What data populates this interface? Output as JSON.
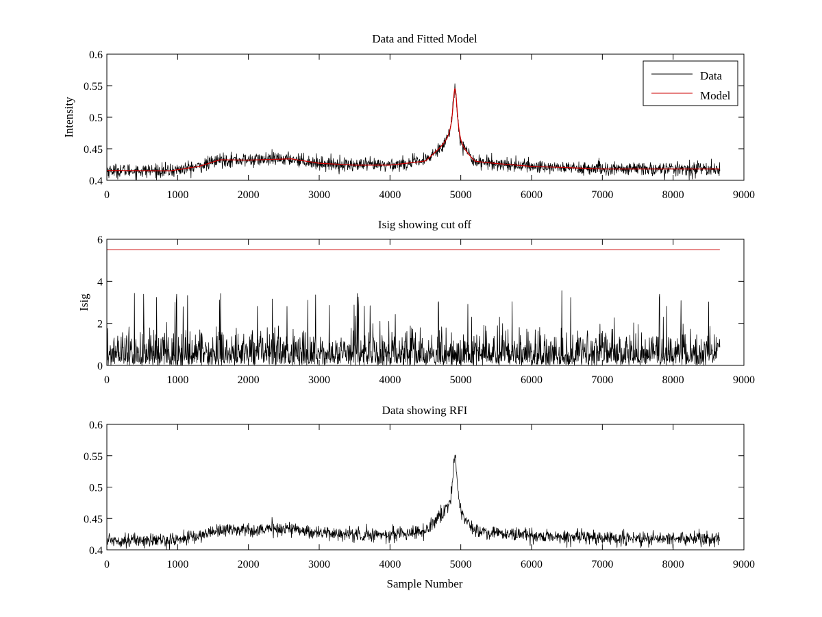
{
  "colors": {
    "data": "#000000",
    "model": "#cc0000",
    "cutoff": "#cc0000",
    "axes": "#000000",
    "background": "#ffffff"
  },
  "chart_data": [
    {
      "type": "line",
      "title": "Data and Fitted Model",
      "xlabel": "",
      "ylabel": "Intensity",
      "xlim": [
        0,
        9000
      ],
      "ylim": [
        0.4,
        0.6
      ],
      "xticks": [
        0,
        1000,
        2000,
        3000,
        4000,
        5000,
        6000,
        7000,
        8000,
        9000
      ],
      "yticks": [
        0.4,
        0.45,
        0.5,
        0.55,
        0.6
      ],
      "ytick_labels": [
        "0.4",
        "0.45",
        "0.5",
        "0.55",
        "0.6"
      ],
      "grid": false,
      "legend": {
        "position": "top-right",
        "entries": [
          "Data",
          "Model"
        ]
      },
      "x_max_sample": 8660,
      "noise_amplitude": 0.006,
      "series": [
        {
          "name": "Data",
          "kind": "noisy",
          "color": "#000000",
          "baseline": [
            [
              0,
              0.4155
            ],
            [
              900,
              0.415
            ],
            [
              1300,
              0.422
            ],
            [
              1600,
              0.4325
            ],
            [
              2000,
              0.432
            ],
            [
              2600,
              0.434
            ],
            [
              3000,
              0.427
            ],
            [
              3500,
              0.424
            ],
            [
              4000,
              0.424
            ],
            [
              4500,
              0.43
            ],
            [
              4900,
              0.468
            ],
            [
              5000,
              0.45
            ],
            [
              5200,
              0.429
            ],
            [
              6000,
              0.422
            ],
            [
              7000,
              0.418
            ],
            [
              8660,
              0.418
            ]
          ],
          "peak": {
            "center": 4920,
            "height": 0.081,
            "width": 38
          }
        },
        {
          "name": "Model",
          "kind": "smooth",
          "color": "#cc0000",
          "baseline": [
            [
              0,
              0.4155
            ],
            [
              900,
              0.415
            ],
            [
              1300,
              0.422
            ],
            [
              1600,
              0.4325
            ],
            [
              2000,
              0.432
            ],
            [
              2600,
              0.434
            ],
            [
              3000,
              0.427
            ],
            [
              3500,
              0.424
            ],
            [
              4000,
              0.424
            ],
            [
              4500,
              0.43
            ],
            [
              4900,
              0.468
            ],
            [
              5000,
              0.45
            ],
            [
              5200,
              0.429
            ],
            [
              6000,
              0.422
            ],
            [
              7000,
              0.418
            ],
            [
              8660,
              0.418
            ]
          ],
          "peak": {
            "center": 4920,
            "height": 0.081,
            "width": 38
          }
        }
      ]
    },
    {
      "type": "line",
      "title": "Isig showing cut off",
      "xlabel": "",
      "ylabel": "Isig",
      "xlim": [
        0,
        9000
      ],
      "ylim": [
        0,
        6
      ],
      "xticks": [
        0,
        1000,
        2000,
        3000,
        4000,
        5000,
        6000,
        7000,
        8000,
        9000
      ],
      "yticks": [
        0,
        2,
        4,
        6
      ],
      "ytick_labels": [
        "0",
        "2",
        "4",
        "6"
      ],
      "grid": false,
      "x_max_sample": 8660,
      "series": [
        {
          "kind": "abs-noise",
          "color": "#000000",
          "scale": 0.75,
          "max": 3.7
        },
        {
          "kind": "cutoff",
          "color": "#cc0000",
          "value": 5.5
        }
      ]
    },
    {
      "type": "line",
      "title": "Data showing RFI",
      "xlabel": "Sample Number",
      "ylabel": "",
      "xlim": [
        0,
        9000
      ],
      "ylim": [
        0.4,
        0.6
      ],
      "xticks": [
        0,
        1000,
        2000,
        3000,
        4000,
        5000,
        6000,
        7000,
        8000,
        9000
      ],
      "yticks": [
        0.4,
        0.45,
        0.5,
        0.55,
        0.6
      ],
      "ytick_labels": [
        "0.4",
        "0.45",
        "0.5",
        "0.55",
        "0.6"
      ],
      "grid": false,
      "x_max_sample": 8660,
      "noise_amplitude": 0.006,
      "series": [
        {
          "kind": "noisy",
          "color": "#000000",
          "baseline": [
            [
              0,
              0.4155
            ],
            [
              900,
              0.415
            ],
            [
              1300,
              0.422
            ],
            [
              1600,
              0.4325
            ],
            [
              2000,
              0.432
            ],
            [
              2600,
              0.434
            ],
            [
              3000,
              0.427
            ],
            [
              3500,
              0.424
            ],
            [
              4000,
              0.424
            ],
            [
              4500,
              0.43
            ],
            [
              4900,
              0.468
            ],
            [
              5000,
              0.45
            ],
            [
              5200,
              0.429
            ],
            [
              6000,
              0.422
            ],
            [
              7000,
              0.418
            ],
            [
              8660,
              0.418
            ]
          ],
          "peak": {
            "center": 4920,
            "height": 0.081,
            "width": 38
          }
        }
      ]
    }
  ]
}
